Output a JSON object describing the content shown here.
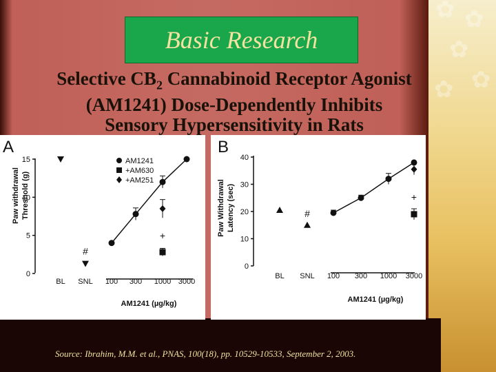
{
  "slide": {
    "title": "Basic Research",
    "heading_before_sub": "Selective CB",
    "heading_sub": "2",
    "heading_line1_after": " Cannabinoid Receptor Agonist",
    "heading_line2": "(AM1241) Dose-Dependently Inhibits",
    "heading_line3": "Sensory Hypersensitivity in Rats",
    "source": "Source: Ibrahim, M.M. et al., PNAS, 100(18), pp. 10529-10533, September 2, 2003."
  },
  "chart_data": [
    {
      "panel": "A",
      "type": "scatter",
      "xlabel": "AM1241 (µg/kg)",
      "ylabel": "Paw withdrawal Threshold (g)",
      "x_categories": [
        "BL",
        "SNL",
        "100",
        "300",
        "1000",
        "3000"
      ],
      "yticks": [
        "0",
        "5",
        "10",
        "15"
      ],
      "ylim": [
        0,
        15.5
      ],
      "legend_position": "top",
      "series": [
        {
          "name": "AM1241",
          "marker": "circle",
          "connected": true,
          "points": [
            {
              "x": "100",
              "y": 4
            },
            {
              "x": "300",
              "y": 7.8,
              "err": 0.8
            },
            {
              "x": "1000",
              "y": 12,
              "err": 0.8
            },
            {
              "x": "3000",
              "y": 15
            }
          ]
        },
        {
          "name": "+AM630",
          "marker": "square",
          "connected": false,
          "points": [
            {
              "x": "1000",
              "y": 2.8,
              "err": 0.5
            }
          ]
        },
        {
          "name": "+AM251",
          "marker": "diamond",
          "connected": false,
          "points": [
            {
              "x": "1000",
              "y": 8.5,
              "err": 1.2
            }
          ]
        },
        {
          "name": "",
          "marker": "triangle-down",
          "connected": false,
          "points": [
            {
              "x": "BL",
              "y": 15
            },
            {
              "x": "SNL",
              "y": 1.3
            }
          ]
        }
      ],
      "annotations": [
        {
          "text": "#",
          "x": "SNL",
          "y": 2.5
        },
        {
          "text": "+",
          "x": "1000",
          "y": 4.5
        }
      ]
    },
    {
      "panel": "B",
      "type": "scatter",
      "xlabel": "AM1241 (µg/kg)",
      "ylabel": "Paw Withdrawal Latency (sec)",
      "x_categories": [
        "BL",
        "SNL",
        "100",
        "300",
        "1000",
        "3000"
      ],
      "yticks": [
        "0",
        "10",
        "20",
        "30",
        "40"
      ],
      "ylim": [
        0,
        41
      ],
      "series": [
        {
          "name": "AM1241",
          "marker": "circle",
          "connected": true,
          "points": [
            {
              "x": "100",
              "y": 19.5,
              "err": 1
            },
            {
              "x": "300",
              "y": 25,
              "err": 1
            },
            {
              "x": "1000",
              "y": 32,
              "err": 2
            },
            {
              "x": "3000",
              "y": 38
            }
          ]
        },
        {
          "name": "+AM630",
          "marker": "square",
          "connected": false,
          "points": [
            {
              "x": "3000",
              "y": 19,
              "err": 2
            }
          ]
        },
        {
          "name": "+AM251",
          "marker": "diamond",
          "connected": false,
          "points": [
            {
              "x": "3000",
              "y": 35.5,
              "err": 2
            }
          ]
        },
        {
          "name": "",
          "marker": "triangle-up",
          "connected": false,
          "points": [
            {
              "x": "BL",
              "y": 20.5
            },
            {
              "x": "SNL",
              "y": 15
            }
          ]
        }
      ],
      "annotations": [
        {
          "text": "#",
          "x": "SNL",
          "y": 18
        },
        {
          "text": "+",
          "x": "3000",
          "y": 24
        }
      ]
    }
  ]
}
